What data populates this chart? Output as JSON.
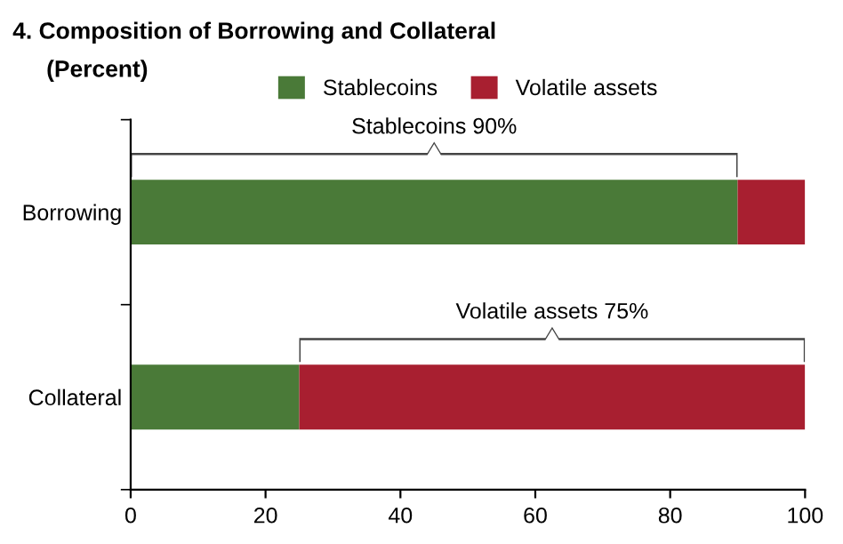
{
  "chart_data": {
    "type": "bar",
    "orientation": "horizontal",
    "stacked": true,
    "title": "4. Composition of Borrowing and Collateral",
    "subtitle": "(Percent)",
    "categories": [
      "Borrowing",
      "Collateral"
    ],
    "series": [
      {
        "name": "Stablecoins",
        "color": "#4a7a38",
        "values": [
          90,
          25
        ]
      },
      {
        "name": "Volatile assets",
        "color": "#a81f30",
        "values": [
          10,
          75
        ]
      }
    ],
    "annotations": [
      "Stablecoins 90%",
      "Volatile assets 75%"
    ],
    "xlim": [
      0,
      100
    ],
    "xticks": [
      0,
      20,
      40,
      60,
      80,
      100
    ],
    "grid": false,
    "legend": "top"
  }
}
